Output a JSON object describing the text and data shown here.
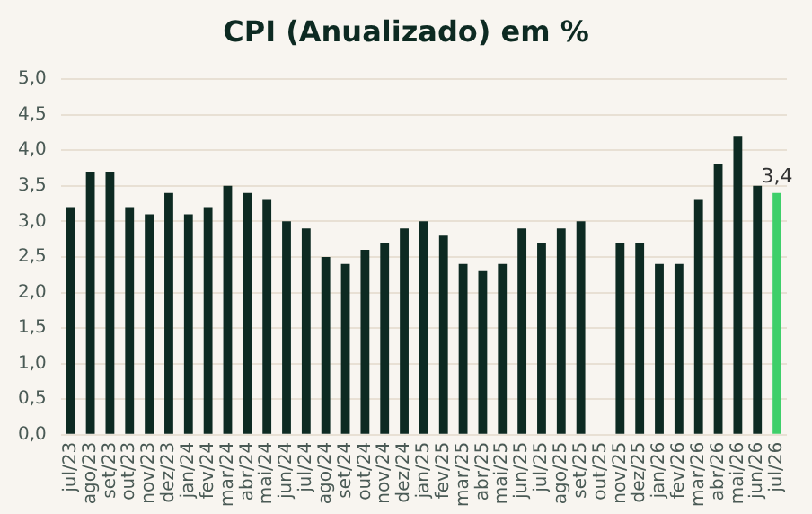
{
  "chart_data": {
    "type": "bar",
    "title": "CPI (Anualizado) em %",
    "categories": [
      "jul/23",
      "ago/23",
      "set/23",
      "out/23",
      "nov/23",
      "dez/23",
      "jan/24",
      "fev/24",
      "mar/24",
      "abr/24",
      "mai/24",
      "jun/24",
      "jul/24",
      "ago/24",
      "set/24",
      "out/24",
      "nov/24",
      "dez/24",
      "jan/25",
      "fev/25",
      "mar/25",
      "abr/25",
      "mai/25",
      "jun/25",
      "jul/25",
      "ago/25",
      "set/25",
      "out/25",
      "nov/25",
      "dez/25",
      "jan/26",
      "fev/26",
      "mar/26",
      "abr/26",
      "mai/26",
      "jun/26",
      "jul/26"
    ],
    "values": [
      3.2,
      3.7,
      3.7,
      3.2,
      3.1,
      3.4,
      3.1,
      3.2,
      3.5,
      3.4,
      3.3,
      3.0,
      2.9,
      2.5,
      2.4,
      2.6,
      2.7,
      2.9,
      3.0,
      2.8,
      2.4,
      2.3,
      2.4,
      2.9,
      2.7,
      2.9,
      3.0,
      null,
      2.7,
      2.7,
      2.4,
      2.4,
      3.3,
      3.8,
      4.2,
      3.5,
      3.4
    ],
    "colors": [
      "#0d2a22",
      "#0d2a22",
      "#0d2a22",
      "#0d2a22",
      "#0d2a22",
      "#0d2a22",
      "#0d2a22",
      "#0d2a22",
      "#0d2a22",
      "#0d2a22",
      "#0d2a22",
      "#0d2a22",
      "#0d2a22",
      "#0d2a22",
      "#0d2a22",
      "#0d2a22",
      "#0d2a22",
      "#0d2a22",
      "#0d2a22",
      "#0d2a22",
      "#0d2a22",
      "#0d2a22",
      "#0d2a22",
      "#0d2a22",
      "#0d2a22",
      "#0d2a22",
      "#0d2a22",
      "#0d2a22",
      "#0d2a22",
      "#0d2a22",
      "#0d2a22",
      "#0d2a22",
      "#0d2a22",
      "#0d2a22",
      "#0d2a22",
      "#0d2a22",
      "#3ecf6a"
    ],
    "value_labels": [
      null,
      null,
      null,
      null,
      null,
      null,
      null,
      null,
      null,
      null,
      null,
      null,
      null,
      null,
      null,
      null,
      null,
      null,
      null,
      null,
      null,
      null,
      null,
      null,
      null,
      null,
      null,
      null,
      null,
      null,
      null,
      null,
      null,
      null,
      null,
      null,
      "3,4"
    ],
    "ylim": [
      0,
      5
    ],
    "yticks": [
      {
        "value": 0,
        "label": "0,0"
      },
      {
        "value": 0.5,
        "label": "0,5"
      },
      {
        "value": 1,
        "label": "1,0"
      },
      {
        "value": 1.5,
        "label": "1,5"
      },
      {
        "value": 2,
        "label": "2,0"
      },
      {
        "value": 2.5,
        "label": "2,5"
      },
      {
        "value": 3,
        "label": "3,0"
      },
      {
        "value": 3.5,
        "label": "3,5"
      },
      {
        "value": 4,
        "label": "4,0"
      },
      {
        "value": 4.5,
        "label": "4,5"
      },
      {
        "value": 5,
        "label": "5,0"
      }
    ],
    "grid": "y",
    "legend": false
  }
}
